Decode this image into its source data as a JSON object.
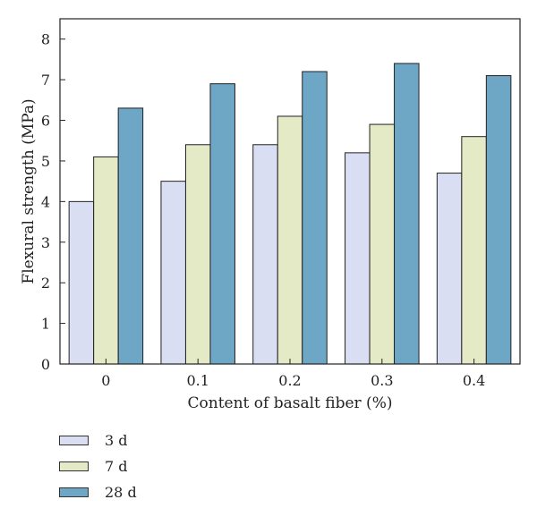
{
  "chart_data": {
    "type": "bar",
    "categories": [
      "0",
      "0.1",
      "0.2",
      "0.3",
      "0.4"
    ],
    "series": [
      {
        "name": "3 d",
        "values": [
          4.0,
          4.5,
          5.4,
          5.2,
          4.7
        ],
        "color": "#d9def2"
      },
      {
        "name": "7 d",
        "values": [
          5.1,
          5.4,
          6.1,
          5.9,
          5.6
        ],
        "color": "#e4e9c6"
      },
      {
        "name": "28 d",
        "values": [
          6.3,
          6.9,
          7.2,
          7.4,
          7.1
        ],
        "color": "#6ea6c6"
      }
    ],
    "title": "",
    "xlabel": "Content of basalt fiber (%)",
    "ylabel": "Flexural strength (MPa)",
    "ylim": [
      0,
      8.5
    ],
    "yticks": [
      "0",
      "1",
      "2",
      "3",
      "4",
      "5",
      "6",
      "7",
      "8"
    ],
    "grid": false,
    "legend_position": "bottom-left, below plot"
  }
}
